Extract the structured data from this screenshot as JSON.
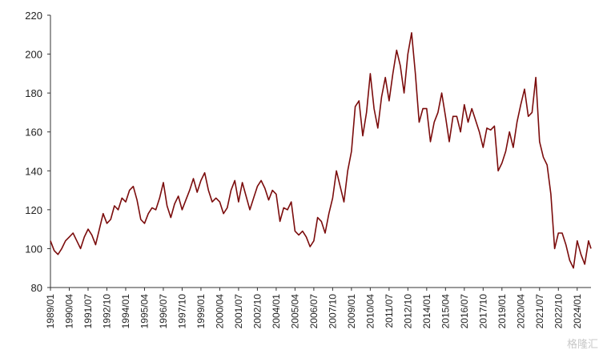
{
  "chart_data": {
    "type": "line",
    "title": "",
    "xlabel": "",
    "ylabel": "",
    "ylim": [
      80,
      220
    ],
    "yticks": [
      80,
      100,
      120,
      140,
      160,
      180,
      200,
      220
    ],
    "grid": false,
    "legend": "none",
    "x_tick_labels": [
      "1989/01",
      "1990/04",
      "1991/07",
      "1992/10",
      "1994/01",
      "1995/04",
      "1996/07",
      "1997/10",
      "1999/01",
      "2000/04",
      "2001/07",
      "2002/10",
      "2004/01",
      "2005/04",
      "2006/07",
      "2007/10",
      "2009/01",
      "2010/04",
      "2011/07",
      "2012/10",
      "2014/01",
      "2015/04",
      "2016/07",
      "2017/10",
      "2019/01",
      "2020/04",
      "2021/07",
      "2022/10",
      "2024/01"
    ],
    "x_start": "1989/01",
    "x_end": "2024/12",
    "series": [
      {
        "color": "#7b0c0c",
        "points": [
          [
            "1989/01",
            104
          ],
          [
            "1989/04",
            99
          ],
          [
            "1989/07",
            97
          ],
          [
            "1989/10",
            100
          ],
          [
            "1990/01",
            104
          ],
          [
            "1990/04",
            106
          ],
          [
            "1990/07",
            108
          ],
          [
            "1990/10",
            104
          ],
          [
            "1991/01",
            100
          ],
          [
            "1991/04",
            106
          ],
          [
            "1991/07",
            110
          ],
          [
            "1991/10",
            107
          ],
          [
            "1992/01",
            102
          ],
          [
            "1992/04",
            110
          ],
          [
            "1992/07",
            118
          ],
          [
            "1992/10",
            113
          ],
          [
            "1993/01",
            115
          ],
          [
            "1993/04",
            122
          ],
          [
            "1993/07",
            120
          ],
          [
            "1993/10",
            126
          ],
          [
            "1994/01",
            124
          ],
          [
            "1994/04",
            130
          ],
          [
            "1994/07",
            132
          ],
          [
            "1994/10",
            125
          ],
          [
            "1995/01",
            115
          ],
          [
            "1995/04",
            113
          ],
          [
            "1995/07",
            118
          ],
          [
            "1995/10",
            121
          ],
          [
            "1996/01",
            120
          ],
          [
            "1996/04",
            126
          ],
          [
            "1996/07",
            134
          ],
          [
            "1996/10",
            122
          ],
          [
            "1997/01",
            116
          ],
          [
            "1997/04",
            123
          ],
          [
            "1997/07",
            127
          ],
          [
            "1997/10",
            120
          ],
          [
            "1998/01",
            125
          ],
          [
            "1998/04",
            130
          ],
          [
            "1998/07",
            136
          ],
          [
            "1998/10",
            129
          ],
          [
            "1999/01",
            135
          ],
          [
            "1999/04",
            139
          ],
          [
            "1999/07",
            130
          ],
          [
            "1999/10",
            124
          ],
          [
            "2000/01",
            126
          ],
          [
            "2000/04",
            124
          ],
          [
            "2000/07",
            118
          ],
          [
            "2000/10",
            121
          ],
          [
            "2001/01",
            130
          ],
          [
            "2001/04",
            135
          ],
          [
            "2001/07",
            124
          ],
          [
            "2001/10",
            134
          ],
          [
            "2002/01",
            127
          ],
          [
            "2002/04",
            120
          ],
          [
            "2002/07",
            126
          ],
          [
            "2002/10",
            132
          ],
          [
            "2003/01",
            135
          ],
          [
            "2003/04",
            131
          ],
          [
            "2003/07",
            125
          ],
          [
            "2003/10",
            130
          ],
          [
            "2004/01",
            128
          ],
          [
            "2004/04",
            114
          ],
          [
            "2004/07",
            121
          ],
          [
            "2004/10",
            120
          ],
          [
            "2005/01",
            124
          ],
          [
            "2005/04",
            109
          ],
          [
            "2005/07",
            107
          ],
          [
            "2005/10",
            109
          ],
          [
            "2006/01",
            106
          ],
          [
            "2006/04",
            101
          ],
          [
            "2006/07",
            104
          ],
          [
            "2006/10",
            116
          ],
          [
            "2007/01",
            114
          ],
          [
            "2007/04",
            108
          ],
          [
            "2007/07",
            118
          ],
          [
            "2007/10",
            126
          ],
          [
            "2008/01",
            140
          ],
          [
            "2008/04",
            132
          ],
          [
            "2008/07",
            124
          ],
          [
            "2008/10",
            140
          ],
          [
            "2009/01",
            150
          ],
          [
            "2009/04",
            173
          ],
          [
            "2009/07",
            176
          ],
          [
            "2009/10",
            158
          ],
          [
            "2010/01",
            170
          ],
          [
            "2010/04",
            190
          ],
          [
            "2010/07",
            172
          ],
          [
            "2010/10",
            162
          ],
          [
            "2011/01",
            178
          ],
          [
            "2011/04",
            188
          ],
          [
            "2011/07",
            176
          ],
          [
            "2011/10",
            190
          ],
          [
            "2012/01",
            202
          ],
          [
            "2012/04",
            194
          ],
          [
            "2012/07",
            180
          ],
          [
            "2012/10",
            200
          ],
          [
            "2013/01",
            211
          ],
          [
            "2013/04",
            190
          ],
          [
            "2013/07",
            165
          ],
          [
            "2013/10",
            172
          ],
          [
            "2014/01",
            172
          ],
          [
            "2014/04",
            155
          ],
          [
            "2014/07",
            165
          ],
          [
            "2014/10",
            170
          ],
          [
            "2015/01",
            180
          ],
          [
            "2015/04",
            168
          ],
          [
            "2015/07",
            155
          ],
          [
            "2015/10",
            168
          ],
          [
            "2016/01",
            168
          ],
          [
            "2016/04",
            160
          ],
          [
            "2016/07",
            174
          ],
          [
            "2016/10",
            165
          ],
          [
            "2017/01",
            172
          ],
          [
            "2017/04",
            166
          ],
          [
            "2017/07",
            160
          ],
          [
            "2017/10",
            152
          ],
          [
            "2018/01",
            162
          ],
          [
            "2018/04",
            161
          ],
          [
            "2018/07",
            163
          ],
          [
            "2018/10",
            140
          ],
          [
            "2019/01",
            144
          ],
          [
            "2019/04",
            150
          ],
          [
            "2019/07",
            160
          ],
          [
            "2019/10",
            152
          ],
          [
            "2020/01",
            165
          ],
          [
            "2020/04",
            174
          ],
          [
            "2020/07",
            182
          ],
          [
            "2020/10",
            168
          ],
          [
            "2021/01",
            170
          ],
          [
            "2021/04",
            188
          ],
          [
            "2021/07",
            155
          ],
          [
            "2021/10",
            147
          ],
          [
            "2022/01",
            143
          ],
          [
            "2022/04",
            128
          ],
          [
            "2022/07",
            100
          ],
          [
            "2022/10",
            108
          ],
          [
            "2023/01",
            108
          ],
          [
            "2023/04",
            102
          ],
          [
            "2023/07",
            94
          ],
          [
            "2023/10",
            90
          ],
          [
            "2024/01",
            104
          ],
          [
            "2024/04",
            97
          ],
          [
            "2024/07",
            92
          ],
          [
            "2024/10",
            104
          ],
          [
            "2024/12",
            100
          ]
        ]
      }
    ]
  },
  "watermark": "格隆汇"
}
